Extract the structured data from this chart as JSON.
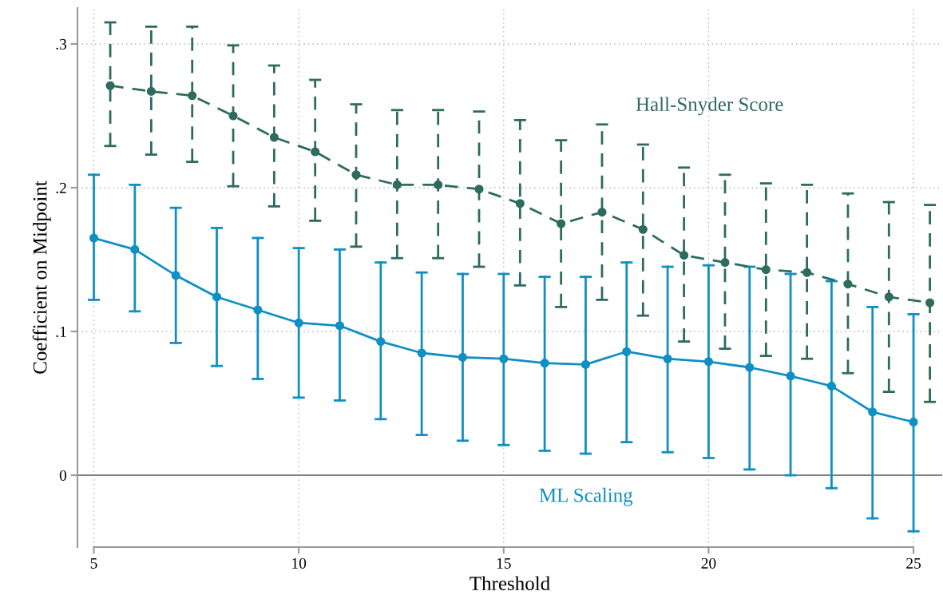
{
  "chart_data": {
    "type": "line",
    "xlabel": "Threshold",
    "ylabel": "Coefficient on Midpoint",
    "xlim": [
      4.6,
      25.7
    ],
    "ylim": [
      -0.05,
      0.325
    ],
    "xticks": [
      5,
      10,
      15,
      20,
      25
    ],
    "yticks": [
      {
        "value": 0,
        "label": "0"
      },
      {
        "value": 0.1,
        "label": ".1"
      },
      {
        "value": 0.2,
        "label": ".2"
      },
      {
        "value": 0.3,
        "label": ".3"
      }
    ],
    "grid": true,
    "marker": "circle",
    "legend": false,
    "ref_lines": [
      {
        "axis": "y",
        "value": 0,
        "color": "#7f7f7f",
        "line_style": "solid"
      }
    ],
    "series": [
      {
        "name": "Hall-Snyder Score",
        "color": "#2e6b5e",
        "line_style": "dashed",
        "x": [
          5.4,
          6.4,
          7.4,
          8.4,
          9.4,
          10.4,
          11.4,
          12.4,
          13.4,
          14.4,
          15.4,
          16.4,
          17.4,
          18.4,
          19.4,
          20.4,
          21.4,
          22.4,
          23.4,
          24.4,
          25.4
        ],
        "values": [
          0.271,
          0.267,
          0.264,
          0.25,
          0.235,
          0.225,
          0.209,
          0.202,
          0.202,
          0.199,
          0.189,
          0.175,
          0.183,
          0.171,
          0.153,
          0.148,
          0.143,
          0.141,
          0.133,
          0.124,
          0.12
        ],
        "errors": [
          [
            0.229,
            0.315
          ],
          [
            0.223,
            0.312
          ],
          [
            0.218,
            0.312
          ],
          [
            0.201,
            0.299
          ],
          [
            0.187,
            0.285
          ],
          [
            0.177,
            0.275
          ],
          [
            0.159,
            0.258
          ],
          [
            0.151,
            0.254
          ],
          [
            0.151,
            0.254
          ],
          [
            0.145,
            0.253
          ],
          [
            0.132,
            0.247
          ],
          [
            0.117,
            0.233
          ],
          [
            0.122,
            0.244
          ],
          [
            0.111,
            0.23
          ],
          [
            0.093,
            0.214
          ],
          [
            0.088,
            0.209
          ],
          [
            0.083,
            0.203
          ],
          [
            0.081,
            0.202
          ],
          [
            0.071,
            0.196
          ],
          [
            0.058,
            0.19
          ],
          [
            0.051,
            0.188
          ]
        ]
      },
      {
        "name": "ML Scaling",
        "color": "#0f8fc2",
        "line_style": "solid",
        "x": [
          5,
          6,
          7,
          8,
          9,
          10,
          11,
          12,
          13,
          14,
          15,
          16,
          17,
          18,
          19,
          20,
          21,
          22,
          23,
          24,
          25
        ],
        "values": [
          0.165,
          0.157,
          0.139,
          0.124,
          0.115,
          0.106,
          0.104,
          0.093,
          0.085,
          0.082,
          0.081,
          0.078,
          0.077,
          0.086,
          0.081,
          0.079,
          0.075,
          0.069,
          0.062,
          0.044,
          0.037
        ],
        "errors": [
          [
            0.122,
            0.209
          ],
          [
            0.114,
            0.202
          ],
          [
            0.092,
            0.186
          ],
          [
            0.076,
            0.172
          ],
          [
            0.067,
            0.165
          ],
          [
            0.054,
            0.158
          ],
          [
            0.052,
            0.157
          ],
          [
            0.039,
            0.148
          ],
          [
            0.028,
            0.141
          ],
          [
            0.024,
            0.14
          ],
          [
            0.021,
            0.14
          ],
          [
            0.017,
            0.138
          ],
          [
            0.015,
            0.138
          ],
          [
            0.023,
            0.148
          ],
          [
            0.016,
            0.145
          ],
          [
            0.012,
            0.146
          ],
          [
            0.004,
            0.145
          ],
          [
            0.0,
            0.14
          ],
          [
            -0.009,
            0.135
          ],
          [
            -0.03,
            0.117
          ],
          [
            -0.039,
            0.112
          ]
        ]
      }
    ]
  }
}
